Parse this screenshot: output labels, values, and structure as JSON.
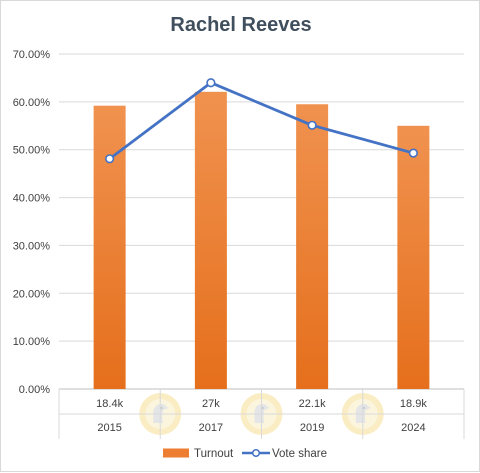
{
  "chart_data": {
    "type": "bar",
    "title": "Rachel Reeves",
    "categories": [
      "2015",
      "2017",
      "2019",
      "2024"
    ],
    "category_sublabels": [
      "18.4k",
      "27k",
      "22.1k",
      "18.9k"
    ],
    "yticks": [
      "0.00%",
      "10.00%",
      "20.00%",
      "30.00%",
      "40.00%",
      "50.00%",
      "60.00%",
      "70.00%"
    ],
    "ylim": [
      0,
      70
    ],
    "grid": true,
    "legend_position": "bottom",
    "series": [
      {
        "name": "Turnout",
        "type": "bar",
        "values": [
          59.2,
          62.1,
          59.5,
          55.0
        ],
        "color": "#ed7d31"
      },
      {
        "name": "Vote share",
        "type": "line",
        "values": [
          48.1,
          64.0,
          55.1,
          49.3
        ],
        "color": "#4472c4"
      }
    ],
    "watermark_icon": "bird-logo-icon"
  }
}
